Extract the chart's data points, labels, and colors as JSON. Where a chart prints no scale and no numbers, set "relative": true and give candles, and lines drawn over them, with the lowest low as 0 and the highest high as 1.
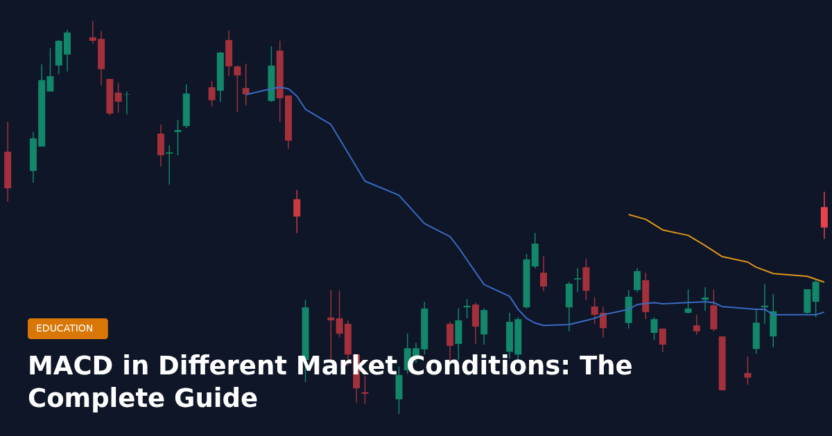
{
  "chart_data": {
    "type": "candlestick",
    "relative": true,
    "title": "MACD in Different Market Conditions: The Complete Guide",
    "annotations": [
      "EDUCATION"
    ],
    "categories": [
      null,
      null,
      null,
      null,
      null,
      null,
      null,
      null,
      null,
      null,
      null,
      null,
      null,
      null,
      null,
      null,
      null,
      null,
      null,
      null,
      null,
      null,
      null,
      null,
      null,
      null,
      null,
      null,
      null,
      null,
      null,
      null,
      null,
      null,
      null,
      null,
      null,
      null,
      null,
      null,
      null,
      null,
      null,
      null,
      null,
      null,
      null,
      null,
      null,
      null,
      null,
      null,
      null,
      null,
      null,
      null,
      null,
      null,
      null,
      null,
      null,
      null,
      null,
      null,
      null,
      null,
      null,
      null,
      null,
      null,
      null,
      null,
      null,
      null,
      null,
      null,
      null,
      null,
      null,
      null,
      null,
      null,
      null,
      null,
      null,
      null,
      null,
      null,
      null,
      null,
      null,
      null,
      null,
      null,
      null,
      null,
      null
    ],
    "ohlc": [
      [
        0.667,
        0.743,
        0.54,
        0.574
      ],
      null,
      null,
      [
        0.618,
        0.717,
        0.588,
        0.701
      ],
      [
        0.68,
        0.889,
        0.68,
        0.849
      ],
      [
        0.82,
        0.93,
        0.82,
        0.859
      ],
      [
        0.886,
        0.951,
        0.864,
        0.949
      ],
      [
        0.914,
        0.977,
        0.871,
        0.97
      ],
      null,
      null,
      [
        0.958,
        1.0,
        0.942,
        0.949
      ],
      [
        0.954,
        0.974,
        0.835,
        0.877
      ],
      [
        0.852,
        0.852,
        0.759,
        0.764
      ],
      [
        0.817,
        0.842,
        0.766,
        0.794
      ],
      [
        0.812,
        0.82,
        0.762,
        0.813
      ],
      null,
      null,
      null,
      [
        0.713,
        0.736,
        0.629,
        0.658
      ],
      [
        0.662,
        0.683,
        0.583,
        0.665
      ],
      [
        0.717,
        0.748,
        0.658,
        0.722
      ],
      [
        0.732,
        0.838,
        0.727,
        0.815
      ],
      null,
      null,
      [
        0.831,
        0.847,
        0.782,
        0.798
      ],
      [
        0.822,
        0.921,
        0.794,
        0.919
      ],
      [
        0.951,
        0.975,
        0.859,
        0.884
      ],
      [
        0.884,
        0.886,
        0.768,
        0.861
      ],
      [
        0.829,
        0.891,
        0.785,
        0.813
      ],
      null,
      null,
      [
        0.796,
        0.935,
        0.794,
        0.886
      ],
      [
        0.924,
        0.949,
        0.743,
        0.803
      ],
      [
        0.81,
        0.81,
        0.674,
        0.695
      ],
      [
        0.546,
        0.57,
        0.46,
        0.502
      ],
      [
        0.137,
        0.29,
        0.081,
        0.271
      ],
      null,
      null,
      [
        0.245,
        0.315,
        0.139,
        0.238
      ],
      [
        0.243,
        0.313,
        0.195,
        0.204
      ],
      [
        0.229,
        0.238,
        0.123,
        0.151
      ],
      [
        0.151,
        0.151,
        0.028,
        0.065
      ],
      [
        0.055,
        0.097,
        0.025,
        0.051
      ],
      null,
      null,
      null,
      [
        0.037,
        0.12,
        0.0,
        0.099
      ],
      [
        0.111,
        0.204,
        0.102,
        0.167
      ],
      [
        0.144,
        0.181,
        0.129,
        0.167
      ],
      [
        0.164,
        0.285,
        0.151,
        0.268
      ],
      null,
      null,
      [
        0.229,
        0.234,
        0.137,
        0.173
      ],
      [
        0.178,
        0.269,
        0.137,
        0.238
      ],
      [
        0.271,
        0.292,
        0.243,
        0.275
      ],
      [
        0.278,
        0.283,
        0.178,
        0.222
      ],
      [
        0.202,
        0.269,
        0.176,
        0.264
      ],
      null,
      null,
      [
        0.158,
        0.257,
        0.141,
        0.234
      ],
      [
        0.151,
        0.246,
        0.137,
        0.241
      ],
      [
        0.271,
        0.407,
        0.268,
        0.393
      ],
      [
        0.375,
        0.46,
        0.37,
        0.433
      ],
      [
        0.359,
        0.401,
        0.312,
        0.324
      ],
      null,
      null,
      [
        0.271,
        0.336,
        0.21,
        0.331
      ],
      [
        0.342,
        0.37,
        0.31,
        0.345
      ],
      [
        0.373,
        0.394,
        0.289,
        0.313
      ],
      [
        0.273,
        0.296,
        0.229,
        0.252
      ],
      [
        0.257,
        0.273,
        0.194,
        0.218
      ],
      null,
      null,
      [
        0.231,
        0.315,
        0.217,
        0.298
      ],
      [
        0.315,
        0.371,
        0.31,
        0.363
      ],
      [
        0.34,
        0.359,
        0.241,
        0.259
      ],
      [
        0.206,
        0.246,
        0.188,
        0.241
      ],
      [
        0.217,
        0.217,
        0.157,
        0.176
      ],
      null,
      null,
      [
        0.257,
        0.317,
        0.255,
        0.268
      ],
      [
        0.225,
        0.252,
        0.201,
        0.21
      ],
      [
        0.29,
        0.322,
        0.262,
        0.296
      ],
      [
        0.276,
        0.317,
        0.21,
        0.215
      ],
      [
        0.197,
        0.197,
        0.06,
        0.06
      ],
      null,
      null,
      [
        0.104,
        0.146,
        0.074,
        0.092
      ],
      [
        0.165,
        0.268,
        0.153,
        0.232
      ],
      [
        0.271,
        0.331,
        0.229,
        0.275
      ],
      [
        0.197,
        0.305,
        0.169,
        0.261
      ],
      null,
      null,
      null,
      [
        0.257,
        0.317,
        0.255,
        0.317
      ],
      [
        0.285,
        0.34,
        0.246,
        0.336
      ],
      [
        0.526,
        0.565,
        0.445,
        0.474
      ]
    ],
    "colors": [
      "#a3313b",
      null,
      null,
      "#13876a",
      "#13876a",
      "#13876a",
      "#13876a",
      "#13876a",
      null,
      null,
      "#a3313b",
      "#a3313b",
      "#a3313b",
      "#a3313b",
      "#13876a",
      null,
      null,
      null,
      "#a3313b",
      "#13876a",
      "#13876a",
      "#13876a",
      null,
      null,
      "#a3313b",
      "#13876a",
      "#a3313b",
      "#a3313b",
      "#a3313b",
      null,
      null,
      "#13876a",
      "#a3313b",
      "#a3313b",
      "#c93a40",
      "#13876a",
      null,
      null,
      "#a3313b",
      "#a3313b",
      "#a3313b",
      "#a3313b",
      "#a3313b",
      null,
      null,
      null,
      "#13876a",
      "#13876a",
      "#13876a",
      "#13876a",
      null,
      null,
      "#a3313b",
      "#13876a",
      "#13876a",
      "#a3313b",
      "#13876a",
      null,
      null,
      "#13876a",
      "#13876a",
      "#13876a",
      "#13876a",
      "#a3313b",
      null,
      null,
      "#13876a",
      "#13876a",
      "#a3313b",
      "#a3313b",
      "#a3313b",
      null,
      null,
      "#13876a",
      "#13876a",
      "#a3313b",
      "#13876a",
      "#a3313b",
      null,
      null,
      "#13876a",
      "#a3313b",
      "#13876a",
      "#a3313b",
      "#a3313b",
      null,
      null,
      "#a3313b",
      "#13876a",
      "#13876a",
      "#13876a",
      null,
      null,
      null,
      "#13876a",
      "#13876a",
      "#e8434a"
    ],
    "series": [
      {
        "type": "line",
        "color": "#3a6bc4",
        "values": [
          null,
          null,
          null,
          null,
          null,
          null,
          null,
          null,
          null,
          null,
          null,
          null,
          null,
          null,
          null,
          null,
          null,
          null,
          null,
          null,
          null,
          null,
          null,
          null,
          null,
          null,
          null,
          null,
          0.812,
          null,
          null,
          0.827,
          0.831,
          0.827,
          0.808,
          0.775,
          null,
          null,
          0.736,
          null,
          null,
          null,
          0.592,
          null,
          null,
          null,
          0.556,
          null,
          null,
          0.484,
          null,
          null,
          0.451,
          0.423,
          null,
          null,
          0.329,
          null,
          null,
          0.299,
          0.266,
          0.243,
          0.231,
          0.225,
          null,
          null,
          0.227,
          null,
          null,
          0.243,
          0.252,
          null,
          null,
          0.266,
          0.278,
          null,
          0.283,
          0.28,
          null,
          null,
          null,
          null,
          0.285,
          0.283,
          0.273,
          null,
          null,
          null,
          0.266,
          0.266,
          0.252,
          null,
          null,
          null,
          null,
          0.252,
          0.259
        ]
      },
      {
        "type": "line",
        "color": "#e0951a",
        "values": [
          null,
          null,
          null,
          null,
          null,
          null,
          null,
          null,
          null,
          null,
          null,
          null,
          null,
          null,
          null,
          null,
          null,
          null,
          null,
          null,
          null,
          null,
          null,
          null,
          null,
          null,
          null,
          null,
          null,
          null,
          null,
          null,
          null,
          null,
          null,
          null,
          null,
          null,
          null,
          null,
          null,
          null,
          null,
          null,
          null,
          null,
          null,
          null,
          null,
          null,
          null,
          null,
          null,
          null,
          null,
          null,
          null,
          null,
          null,
          null,
          null,
          null,
          null,
          null,
          null,
          null,
          null,
          null,
          null,
          null,
          null,
          null,
          null,
          0.507,
          null,
          0.495,
          null,
          0.468,
          null,
          null,
          0.454,
          null,
          0.428,
          null,
          0.4,
          null,
          null,
          0.386,
          0.373,
          null,
          0.357,
          null,
          null,
          null,
          0.35,
          null,
          0.335
        ]
      }
    ]
  }
}
